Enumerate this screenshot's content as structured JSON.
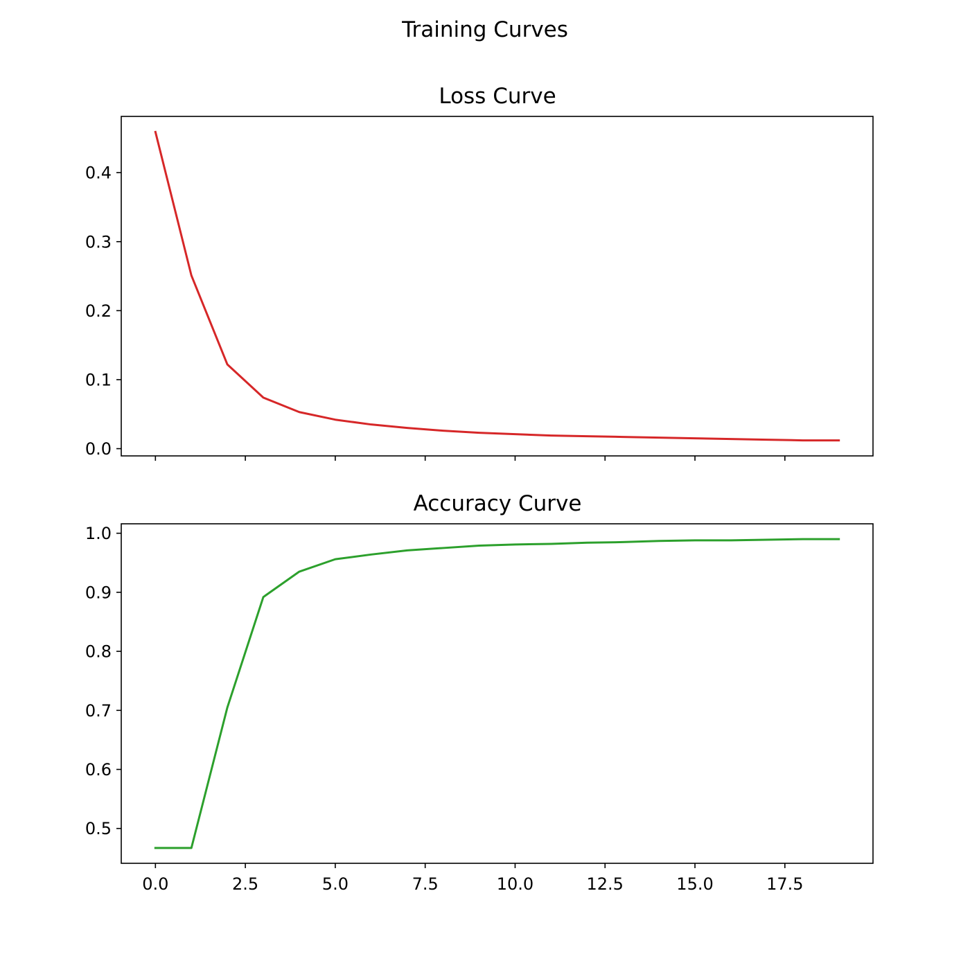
{
  "figure": {
    "suptitle": "Training Curves"
  },
  "chart_data": [
    {
      "type": "line",
      "title": "Loss Curve",
      "xlabel": "",
      "ylabel": "",
      "color": "#d62728",
      "xlim": [
        -0.95,
        19.95
      ],
      "ylim": [
        -0.0105,
        0.4815
      ],
      "x_ticks": [
        0,
        2.5,
        5,
        7.5,
        10,
        12.5,
        15,
        17.5
      ],
      "x_tick_labels_visible": false,
      "y_ticks": [
        0.0,
        0.1,
        0.2,
        0.3,
        0.4
      ],
      "y_tick_labels": [
        "0.0",
        "0.1",
        "0.2",
        "0.3",
        "0.4"
      ],
      "grid": false,
      "x": [
        0,
        1,
        2,
        3,
        4,
        5,
        6,
        7,
        8,
        9,
        10,
        11,
        12,
        13,
        14,
        15,
        16,
        17,
        18,
        19
      ],
      "values": [
        0.459,
        0.251,
        0.122,
        0.074,
        0.053,
        0.042,
        0.035,
        0.03,
        0.026,
        0.023,
        0.021,
        0.019,
        0.018,
        0.017,
        0.016,
        0.015,
        0.014,
        0.013,
        0.012,
        0.012
      ]
    },
    {
      "type": "line",
      "title": "Accuracy Curve",
      "xlabel": "",
      "ylabel": "",
      "color": "#2ca02c",
      "xlim": [
        -0.95,
        19.95
      ],
      "ylim": [
        0.441,
        1.016
      ],
      "x_ticks": [
        0,
        2.5,
        5,
        7.5,
        10,
        12.5,
        15,
        17.5
      ],
      "x_tick_labels": [
        "0.0",
        "2.5",
        "5.0",
        "7.5",
        "10.0",
        "12.5",
        "15.0",
        "17.5"
      ],
      "y_ticks": [
        0.5,
        0.6,
        0.7,
        0.8,
        0.9,
        1.0
      ],
      "y_tick_labels": [
        "0.5",
        "0.6",
        "0.7",
        "0.8",
        "0.9",
        "1.0"
      ],
      "grid": false,
      "x": [
        0,
        1,
        2,
        3,
        4,
        5,
        6,
        7,
        8,
        9,
        10,
        11,
        12,
        13,
        14,
        15,
        16,
        17,
        18,
        19
      ],
      "values": [
        0.467,
        0.467,
        0.705,
        0.892,
        0.935,
        0.956,
        0.964,
        0.971,
        0.975,
        0.979,
        0.981,
        0.982,
        0.984,
        0.985,
        0.987,
        0.988,
        0.988,
        0.989,
        0.99,
        0.99
      ]
    }
  ]
}
